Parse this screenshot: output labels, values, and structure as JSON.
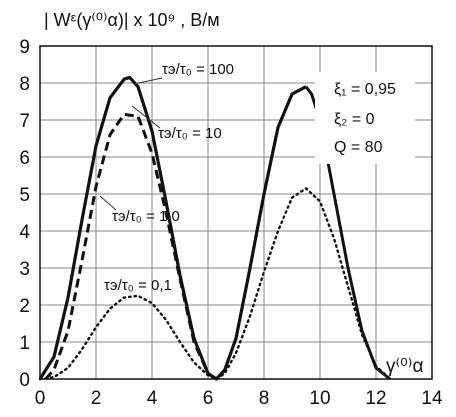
{
  "chart_data": {
    "type": "line",
    "title": "",
    "ylabel": "| Wᵋ(γ⁽⁰⁾α)| x 10⁹ , В/м",
    "xlabel": "γ⁽⁰⁾α",
    "xlim": [
      0,
      14
    ],
    "ylim": [
      0,
      9
    ],
    "xticks": [
      "0",
      "2",
      "4",
      "6",
      "8",
      "10",
      "12",
      "14"
    ],
    "yticks": [
      "0",
      "1",
      "2",
      "3",
      "4",
      "5",
      "6",
      "7",
      "8",
      "9"
    ],
    "grid": true,
    "parameters": [
      "ξ₁ = 0,95",
      "ξ₂ = 0",
      "Q = 80"
    ],
    "series": [
      {
        "name": "τэ/τ₀ = 100",
        "style": "solid",
        "x": [
          0,
          0.5,
          1.0,
          1.5,
          2.0,
          2.5,
          3.0,
          3.2,
          3.5,
          4.0,
          4.5,
          5.0,
          5.5,
          6.0,
          6.3,
          6.6,
          7.0,
          7.5,
          8.0,
          8.5,
          9.0,
          9.5
        ],
        "y": [
          0,
          0.6,
          2.2,
          4.3,
          6.3,
          7.6,
          8.1,
          8.15,
          7.9,
          6.7,
          4.8,
          2.8,
          1.1,
          0.15,
          0,
          0.25,
          1.1,
          3.0,
          5.0,
          6.8,
          7.7,
          7.9
        ]
      },
      {
        "name": "τэ/τ₀ = 10",
        "style": "dash",
        "x": [
          0.2,
          0.5,
          1.0,
          1.5,
          2.0,
          2.5,
          3.0,
          3.5,
          4.0,
          4.5,
          5.0,
          5.5,
          6.0,
          6.3
        ],
        "y": [
          0,
          0.25,
          1.3,
          3.2,
          5.2,
          6.6,
          7.15,
          7.1,
          6.1,
          4.5,
          2.7,
          1.0,
          0.15,
          0
        ]
      },
      {
        "name": "τэ/τ₀ = 1,0",
        "style": "solid-thin",
        "x": [
          9.5,
          9.7,
          10.0,
          10.5,
          11.0,
          11.5,
          12.0,
          12.5
        ],
        "y": [
          7.9,
          7.7,
          7.0,
          5.0,
          3.0,
          1.3,
          0.3,
          0
        ]
      },
      {
        "name": "τэ/τ₀ = 0,1",
        "style": "dot",
        "x": [
          0,
          0.5,
          1.0,
          1.5,
          2.0,
          2.5,
          3.0,
          3.5,
          4.0,
          4.5,
          5.0,
          5.5,
          6.0,
          6.3,
          6.6,
          7.0,
          7.5,
          8.0,
          8.5,
          9.0,
          9.5,
          10.0,
          10.5,
          11.0,
          11.5,
          12.0,
          12.5
        ],
        "y": [
          0,
          0.05,
          0.3,
          0.8,
          1.4,
          1.9,
          2.2,
          2.25,
          2.05,
          1.6,
          1.0,
          0.45,
          0.1,
          0,
          0.15,
          0.7,
          1.7,
          2.9,
          4.0,
          4.9,
          5.15,
          4.8,
          3.8,
          2.5,
          1.2,
          0.35,
          0
        ]
      }
    ]
  }
}
